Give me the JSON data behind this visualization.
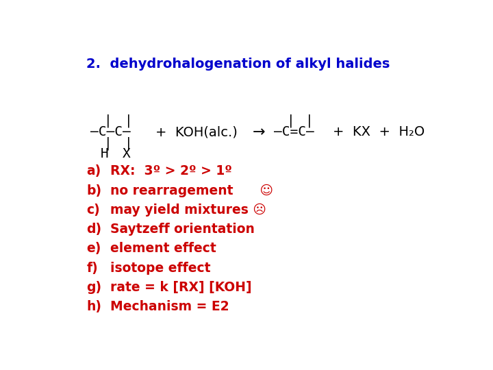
{
  "title": "2.  dehydrohalogenation of alkyl halides",
  "title_color": "#0000CC",
  "title_fontsize": 14,
  "title_bold": true,
  "bg_color": "#FFFFFF",
  "text_color": "#CC0000",
  "black_color": "#000000",
  "list_items": [
    {
      "label": "a)",
      "text": "RX:  3º > 2º > 1º"
    },
    {
      "label": "b)",
      "text": "no rearragement      ☺"
    },
    {
      "label": "c)",
      "text": "may yield mixtures ☹"
    },
    {
      "label": "d)",
      "text": "Saytzeff orientation"
    },
    {
      "label": "e)",
      "text": "element effect"
    },
    {
      "label": "f)",
      "text": "isotope effect"
    },
    {
      "label": "g)",
      "text": "rate = k [RX] [KOH]"
    },
    {
      "label": "h)",
      "text": "Mechanism = E2"
    }
  ],
  "chem_fontsize": 14,
  "list_fontsize": 13.5
}
